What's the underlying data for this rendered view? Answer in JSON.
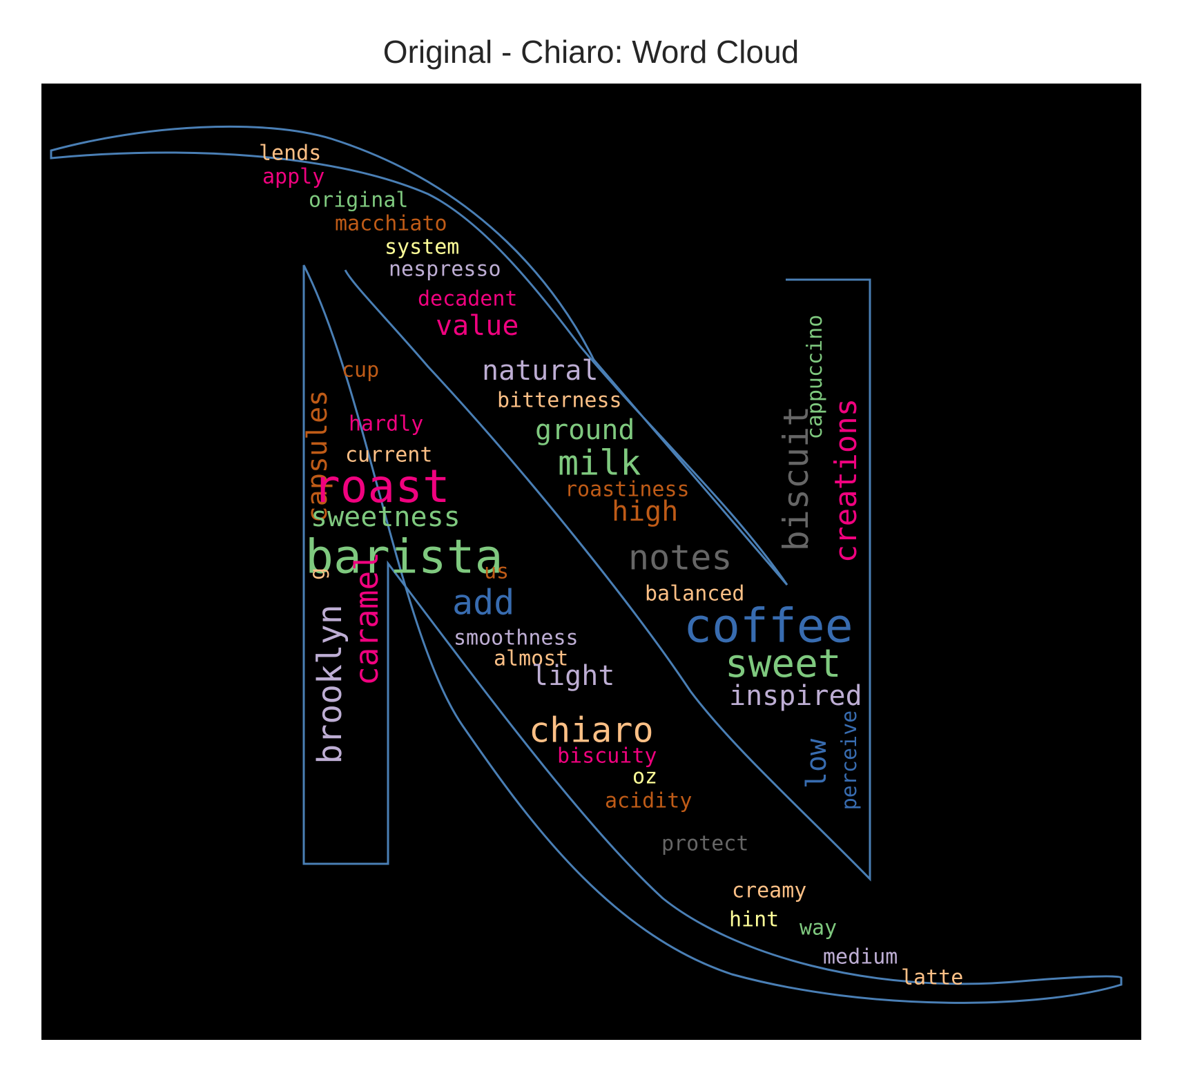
{
  "title": "Original - Chiaro: Word Cloud",
  "outline_color": "#4a7fb5",
  "background_color": "#000000",
  "words": [
    {
      "text": "lends",
      "color": "#fdc086"
    },
    {
      "text": "apply",
      "color": "#f0027f"
    },
    {
      "text": "original",
      "color": "#7fc97f"
    },
    {
      "text": "macchiato",
      "color": "#bf5b17"
    },
    {
      "text": "system",
      "color": "#ffff99"
    },
    {
      "text": "nespresso",
      "color": "#beaed4"
    },
    {
      "text": "decadent",
      "color": "#f0027f"
    },
    {
      "text": "value",
      "color": "#f0027f"
    },
    {
      "text": "natural",
      "color": "#beaed4"
    },
    {
      "text": "cup",
      "color": "#bf5b17"
    },
    {
      "text": "capsules",
      "color": "#bf5b17"
    },
    {
      "text": "bitterness",
      "color": "#fdc086"
    },
    {
      "text": "hardly",
      "color": "#f0027f"
    },
    {
      "text": "ground",
      "color": "#7fc97f"
    },
    {
      "text": "current",
      "color": "#fdc086"
    },
    {
      "text": "milk",
      "color": "#7fc97f"
    },
    {
      "text": "roast",
      "color": "#f0027f"
    },
    {
      "text": "roastiness",
      "color": "#bf5b17"
    },
    {
      "text": "sweetness",
      "color": "#7fc97f"
    },
    {
      "text": "high",
      "color": "#bf5b17"
    },
    {
      "text": "barista",
      "color": "#7fc97f"
    },
    {
      "text": "notes",
      "color": "#666666"
    },
    {
      "text": "us",
      "color": "#bf5b17"
    },
    {
      "text": "g",
      "color": "#fdc086"
    },
    {
      "text": "balanced",
      "color": "#fdc086"
    },
    {
      "text": "add",
      "color": "#386cb0"
    },
    {
      "text": "coffee",
      "color": "#386cb0"
    },
    {
      "text": "smoothness",
      "color": "#beaed4"
    },
    {
      "text": "almost",
      "color": "#fdc086"
    },
    {
      "text": "sweet",
      "color": "#7fc97f"
    },
    {
      "text": "light",
      "color": "#beaed4"
    },
    {
      "text": "inspired",
      "color": "#beaed4"
    },
    {
      "text": "chiaro",
      "color": "#fdc086"
    },
    {
      "text": "biscuity",
      "color": "#f0027f"
    },
    {
      "text": "oz",
      "color": "#ffff99"
    },
    {
      "text": "acidity",
      "color": "#bf5b17"
    },
    {
      "text": "protect",
      "color": "#666666"
    },
    {
      "text": "creamy",
      "color": "#fdc086"
    },
    {
      "text": "hint",
      "color": "#ffff99"
    },
    {
      "text": "way",
      "color": "#7fc97f"
    },
    {
      "text": "medium",
      "color": "#beaed4"
    },
    {
      "text": "latte",
      "color": "#fdc086"
    },
    {
      "text": "caramel",
      "color": "#f0027f"
    },
    {
      "text": "brooklyn",
      "color": "#beaed4"
    },
    {
      "text": "biscuit",
      "color": "#666666"
    },
    {
      "text": "cappuccino",
      "color": "#7fc97f"
    },
    {
      "text": "creations",
      "color": "#f0027f"
    },
    {
      "text": "low",
      "color": "#386cb0"
    },
    {
      "text": "perceive",
      "color": "#386cb0"
    }
  ]
}
